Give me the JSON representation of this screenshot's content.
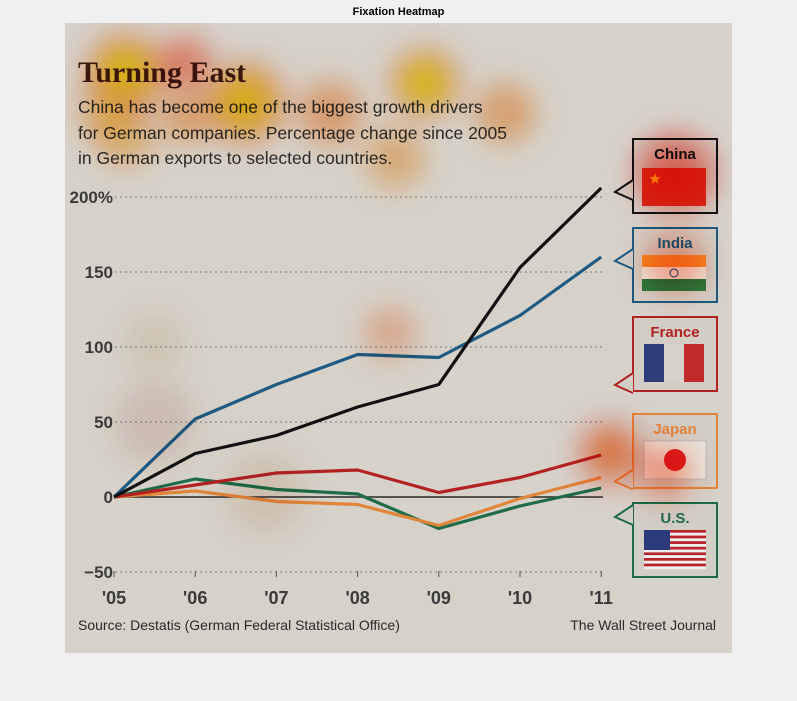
{
  "figure_title": "Fixation Heatmap",
  "chart_data": {
    "type": "line",
    "title": "Turning East",
    "subtitle": [
      "China has become one of the biggest growth drivers",
      "for German companies. Percentage change since 2005",
      "in German exports to selected countries."
    ],
    "categories": [
      "'05",
      "'06",
      "'07",
      "'08",
      "'09",
      "'10",
      "'11"
    ],
    "ylim": [
      -50,
      200
    ],
    "yticks": [
      -50,
      0,
      50,
      100,
      150,
      200
    ],
    "ytick_labels": [
      "−50",
      "0",
      "50",
      "100",
      "150",
      "200%"
    ],
    "grid": true,
    "legend_position": "right",
    "series": [
      {
        "name": "China",
        "color": "#111111",
        "values": [
          0,
          29,
          41,
          60,
          75,
          153,
          206
        ]
      },
      {
        "name": "India",
        "color": "#1e5a82",
        "values": [
          0,
          52,
          75,
          95,
          93,
          121,
          160
        ]
      },
      {
        "name": "France",
        "color": "#b22222",
        "values": [
          0,
          8,
          16,
          18,
          3,
          13,
          28
        ]
      },
      {
        "name": "Japan",
        "color": "#e0853a",
        "values": [
          0,
          4,
          -3,
          -5,
          -19,
          -1,
          13
        ]
      },
      {
        "name": "U.S.",
        "color": "#1f6b47",
        "values": [
          0,
          12,
          5,
          2,
          -21,
          -6,
          6
        ]
      }
    ],
    "source": "Source: Destatis (German Federal Statistical Office)",
    "credit": "The Wall Street Journal"
  }
}
